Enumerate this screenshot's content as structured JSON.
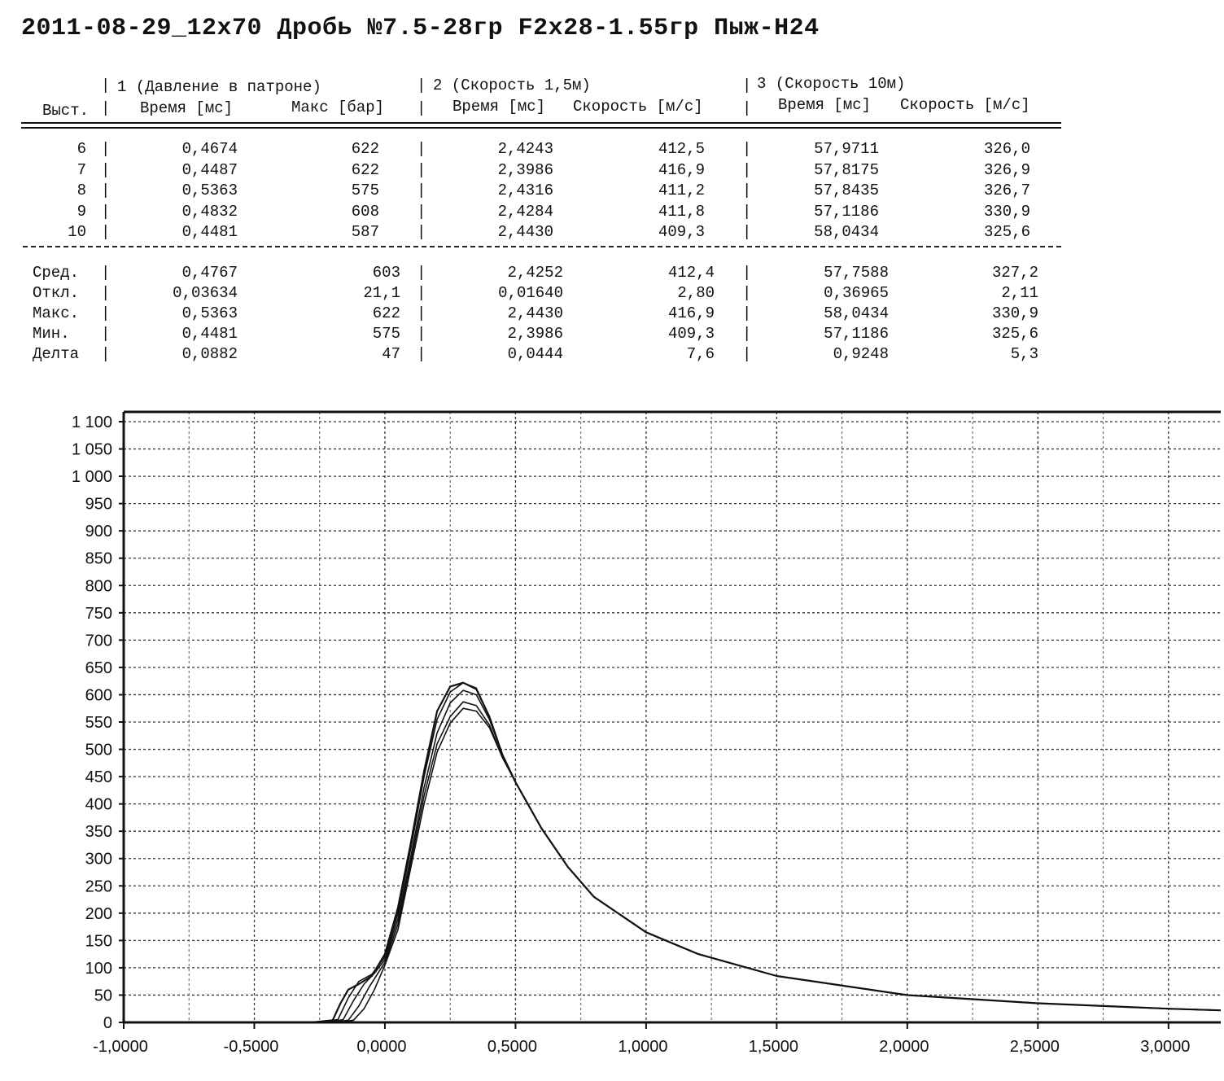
{
  "title": "2011-08-29_12x70 Дробь №7.5-28гр F2x28-1.55гр Пыж-H24",
  "table": {
    "group_headers": [
      "1 (Давление в патроне)",
      "2 (Скорость 1,5м)",
      "3 (Скорость 10м)"
    ],
    "column_headers": [
      "Выст.",
      "Время [мс]",
      "Макс [бар]",
      "Время [мс]",
      "Скорость [м/с]",
      "Время [мс]",
      "Скорость [м/с]"
    ],
    "rows": [
      [
        "6",
        "0,4674",
        "622",
        "2,4243",
        "412,5",
        "57,9711",
        "326,0"
      ],
      [
        "7",
        "0,4487",
        "622",
        "2,3986",
        "416,9",
        "57,8175",
        "326,9"
      ],
      [
        "8",
        "0,5363",
        "575",
        "2,4316",
        "411,2",
        "57,8435",
        "326,7"
      ],
      [
        "9",
        "0,4832",
        "608",
        "2,4284",
        "411,8",
        "57,1186",
        "330,9"
      ],
      [
        "10",
        "0,4481",
        "587",
        "2,4430",
        "409,3",
        "58,0434",
        "325,6"
      ]
    ],
    "stats": [
      [
        "Сред.",
        "0,4767",
        "603",
        "2,4252",
        "412,4",
        "57,7588",
        "327,2"
      ],
      [
        "Откл.",
        "0,03634",
        "21,1",
        "0,01640",
        "2,80",
        "0,36965",
        "2,11"
      ],
      [
        "Макс.",
        "0,5363",
        "622",
        "2,4430",
        "416,9",
        "58,0434",
        "330,9"
      ],
      [
        "Мин.",
        "0,4481",
        "575",
        "2,3986",
        "409,3",
        "57,1186",
        "325,6"
      ],
      [
        "Делта",
        "0,0882",
        "47",
        "0,0444",
        "7,6",
        "0,9248",
        "5,3"
      ]
    ]
  },
  "chart_data": {
    "type": "line",
    "title": "",
    "xlabel": "",
    "ylabel": "",
    "xlim": [
      -1.0,
      3.2
    ],
    "ylim": [
      0,
      1100
    ],
    "x_ticks": [
      -1.0,
      -0.5,
      0.0,
      0.5,
      1.0,
      1.5,
      2.0,
      2.5,
      3.0
    ],
    "x_tick_labels": [
      "-1,0000",
      "-0,5000",
      "0,0000",
      "0,5000",
      "1,0000",
      "1,5000",
      "2,0000",
      "2,5000",
      "3,0000"
    ],
    "y_ticks": [
      0,
      50,
      100,
      150,
      200,
      250,
      300,
      350,
      400,
      450,
      500,
      550,
      600,
      650,
      700,
      750,
      800,
      850,
      900,
      950,
      1000,
      1050,
      1100
    ],
    "y_tick_labels": [
      "0",
      "50",
      "100",
      "150",
      "200",
      "250",
      "300",
      "350",
      "400",
      "450",
      "500",
      "550",
      "600",
      "650",
      "700",
      "750",
      "800",
      "850",
      "900",
      "950",
      "1 000",
      "1 050",
      "1 100"
    ],
    "grid": true,
    "series": [
      {
        "x": [
          -1.0,
          -0.28,
          -0.2,
          -0.17,
          -0.14,
          -0.1,
          -0.05,
          0.0,
          0.05,
          0.1,
          0.15,
          0.2,
          0.25,
          0.3,
          0.35,
          0.4,
          0.45,
          0.5,
          0.6,
          0.7,
          0.8,
          1.0,
          1.2,
          1.5,
          2.0,
          2.5,
          3.0,
          3.2
        ],
        "y": [
          0,
          0,
          4,
          35,
          60,
          70,
          85,
          125,
          210,
          330,
          460,
          570,
          615,
          622,
          610,
          560,
          490,
          440,
          355,
          285,
          230,
          165,
          125,
          85,
          50,
          35,
          25,
          22
        ]
      },
      {
        "x": [
          -1.0,
          -0.25,
          -0.18,
          -0.14,
          -0.1,
          -0.05,
          0.0,
          0.05,
          0.1,
          0.15,
          0.2,
          0.25,
          0.3,
          0.35,
          0.4,
          0.45,
          0.5,
          0.6,
          0.7,
          0.8,
          1.0,
          1.2,
          1.5,
          2.0,
          2.5,
          3.0,
          3.2
        ],
        "y": [
          0,
          0,
          5,
          45,
          75,
          88,
          120,
          200,
          320,
          450,
          555,
          605,
          622,
          612,
          560,
          490,
          440,
          355,
          285,
          230,
          165,
          125,
          85,
          50,
          35,
          25,
          22
        ]
      },
      {
        "x": [
          -1.0,
          -0.22,
          -0.16,
          -0.12,
          -0.08,
          -0.04,
          0.0,
          0.05,
          0.1,
          0.15,
          0.2,
          0.25,
          0.3,
          0.35,
          0.4,
          0.45,
          0.5,
          0.6,
          0.7,
          0.8,
          1.0,
          1.2,
          1.5,
          2.0,
          2.5,
          3.0,
          3.2
        ],
        "y": [
          0,
          0,
          5,
          40,
          70,
          90,
          115,
          190,
          305,
          430,
          530,
          585,
          608,
          600,
          555,
          490,
          440,
          355,
          285,
          230,
          165,
          125,
          85,
          50,
          35,
          25,
          22
        ]
      },
      {
        "x": [
          -1.0,
          -0.2,
          -0.14,
          -0.1,
          -0.06,
          -0.02,
          0.0,
          0.05,
          0.1,
          0.15,
          0.2,
          0.25,
          0.3,
          0.35,
          0.4,
          0.45,
          0.5,
          0.6,
          0.7,
          0.8,
          1.0,
          1.2,
          1.5,
          2.0,
          2.5,
          3.0,
          3.2
        ],
        "y": [
          0,
          0,
          4,
          30,
          65,
          95,
          110,
          180,
          295,
          415,
          510,
          560,
          587,
          580,
          545,
          485,
          440,
          355,
          285,
          230,
          165,
          125,
          85,
          50,
          35,
          25,
          22
        ]
      },
      {
        "x": [
          -1.0,
          -0.18,
          -0.12,
          -0.08,
          -0.04,
          0.0,
          0.05,
          0.1,
          0.15,
          0.2,
          0.25,
          0.3,
          0.35,
          0.4,
          0.45,
          0.5,
          0.6,
          0.7,
          0.8,
          1.0,
          1.2,
          1.5,
          2.0,
          2.5,
          3.0,
          3.2
        ],
        "y": [
          0,
          0,
          4,
          25,
          60,
          105,
          170,
          285,
          400,
          495,
          548,
          575,
          570,
          540,
          485,
          440,
          355,
          285,
          230,
          165,
          125,
          85,
          50,
          35,
          25,
          22
        ]
      }
    ]
  }
}
